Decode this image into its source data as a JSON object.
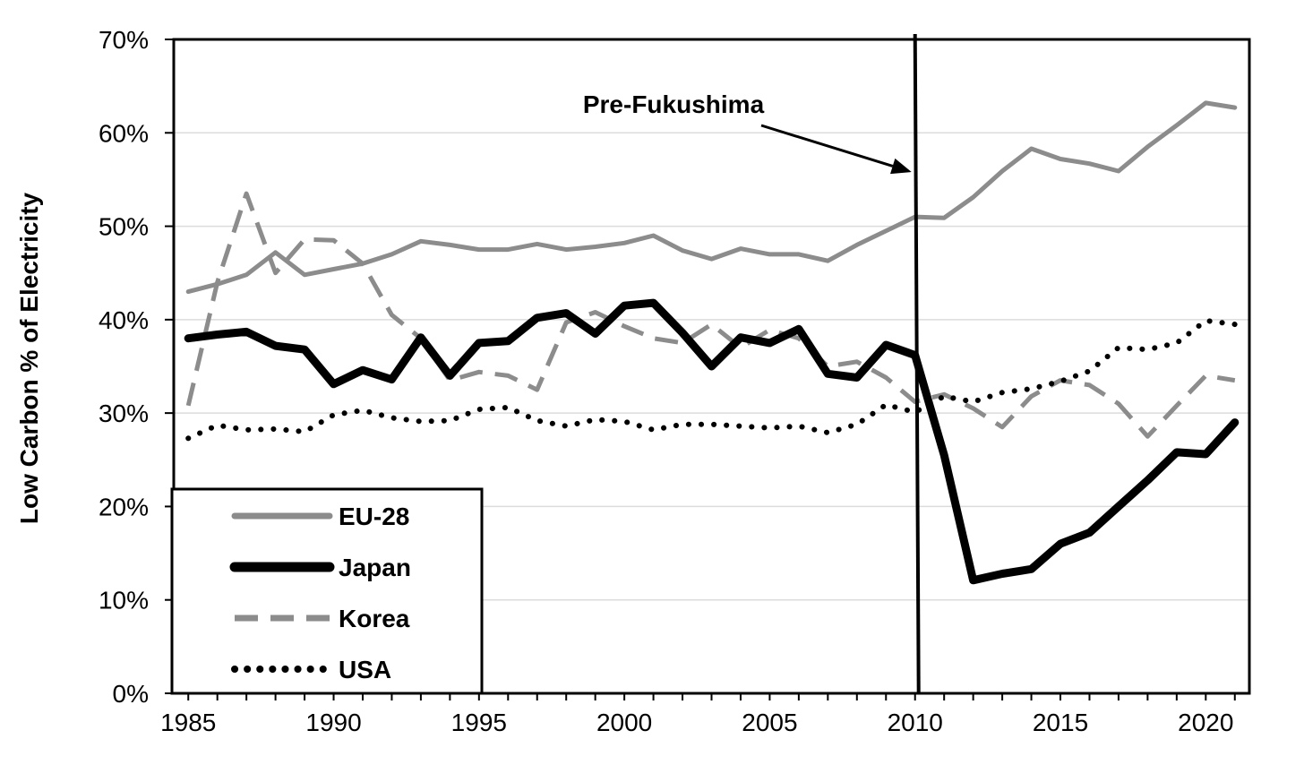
{
  "chart_data": {
    "type": "line",
    "title": "",
    "xlabel": "",
    "ylabel": "Low Carbon % of Electricity",
    "xlim": [
      1984.5,
      2021.5
    ],
    "ylim": [
      0,
      70
    ],
    "x_ticks": [
      "1985",
      "1990",
      "1995",
      "2000",
      "2005",
      "2010",
      "2015",
      "2020"
    ],
    "y_ticks": [
      "0%",
      "10%",
      "20%",
      "30%",
      "40%",
      "50%",
      "60%",
      "70%"
    ],
    "grid": "horizontal",
    "legend_position": "bottom-left",
    "annotation": {
      "text": "Pre-Fukushima",
      "year": 2010
    },
    "x": [
      1985,
      1986,
      1987,
      1988,
      1989,
      1990,
      1991,
      1992,
      1993,
      1994,
      1995,
      1996,
      1997,
      1998,
      1999,
      2000,
      2001,
      2002,
      2003,
      2004,
      2005,
      2006,
      2007,
      2008,
      2009,
      2010,
      2011,
      2012,
      2013,
      2014,
      2015,
      2016,
      2017,
      2018,
      2019,
      2020,
      2021
    ],
    "series": [
      {
        "name": "EU-28",
        "color": "#8c8c8c",
        "style": "solid-thin",
        "values": [
          43.0,
          43.8,
          44.8,
          47.2,
          44.8,
          45.4,
          46.0,
          47.0,
          48.4,
          48.0,
          47.5,
          47.5,
          48.1,
          47.5,
          47.8,
          48.2,
          49.0,
          47.4,
          46.5,
          47.6,
          47.0,
          47.0,
          46.3,
          48.0,
          49.5,
          51.0,
          50.9,
          53.1,
          55.9,
          58.3,
          57.2,
          56.7,
          55.9,
          58.5,
          60.8,
          63.2,
          62.7
        ]
      },
      {
        "name": "Japan",
        "color": "#000000",
        "style": "solid-thick",
        "values": [
          38.0,
          38.4,
          38.7,
          37.2,
          36.8,
          33.1,
          34.6,
          33.6,
          38.1,
          34.0,
          37.5,
          37.7,
          40.2,
          40.7,
          38.5,
          41.5,
          41.8,
          38.6,
          35.0,
          38.1,
          37.5,
          39.0,
          34.2,
          33.8,
          37.3,
          36.2,
          25.5,
          12.1,
          12.8,
          13.3,
          16.0,
          17.2,
          20.0,
          22.8,
          25.8,
          25.6,
          29.0
        ]
      },
      {
        "name": "Korea",
        "color": "#8c8c8c",
        "style": "dashed",
        "values": [
          30.8,
          44.0,
          53.5,
          45.0,
          48.6,
          48.5,
          46.0,
          40.5,
          38.0,
          33.5,
          34.4,
          34.0,
          32.5,
          39.7,
          40.8,
          39.3,
          38.0,
          37.5,
          39.5,
          37.0,
          38.9,
          38.0,
          35.0,
          35.5,
          33.8,
          31.2,
          32.0,
          30.5,
          28.5,
          31.8,
          33.5,
          33.0,
          31.0,
          27.5,
          30.8,
          34.0,
          33.5
        ]
      },
      {
        "name": "USA",
        "color": "#000000",
        "style": "dotted",
        "values": [
          27.3,
          28.7,
          28.2,
          28.3,
          28.0,
          29.8,
          30.3,
          29.5,
          29.1,
          29.2,
          30.4,
          30.6,
          29.2,
          28.6,
          29.3,
          29.1,
          28.2,
          28.8,
          28.8,
          28.6,
          28.4,
          28.6,
          27.9,
          28.8,
          30.9,
          30.1,
          31.8,
          31.2,
          32.2,
          32.6,
          33.4,
          34.5,
          37.0,
          36.8,
          37.5,
          39.9,
          39.5
        ]
      }
    ]
  }
}
